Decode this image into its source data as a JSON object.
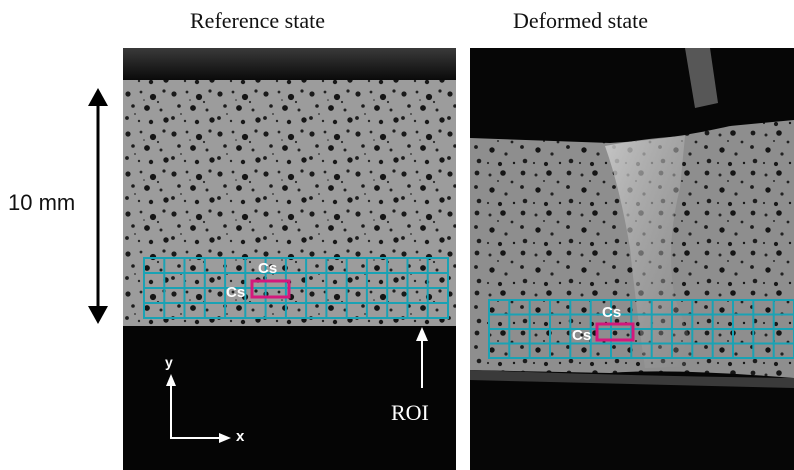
{
  "panels": {
    "reference": {
      "title": "Reference state"
    },
    "deformed": {
      "title": "Deformed state"
    }
  },
  "scale_bar": {
    "label": "10 mm"
  },
  "axes": {
    "y_label": "y",
    "x_label": "x"
  },
  "annotations": {
    "cs_vertical": "Cs",
    "cs_horizontal": "Cs",
    "roi": "ROI"
  },
  "colors": {
    "grid": "#1aa2b4",
    "highlight": "#d4187c",
    "annotation": "#ffffff"
  },
  "icons": [
    "scale-double-arrow-icon",
    "axes-icon",
    "roi-arrow-icon"
  ]
}
